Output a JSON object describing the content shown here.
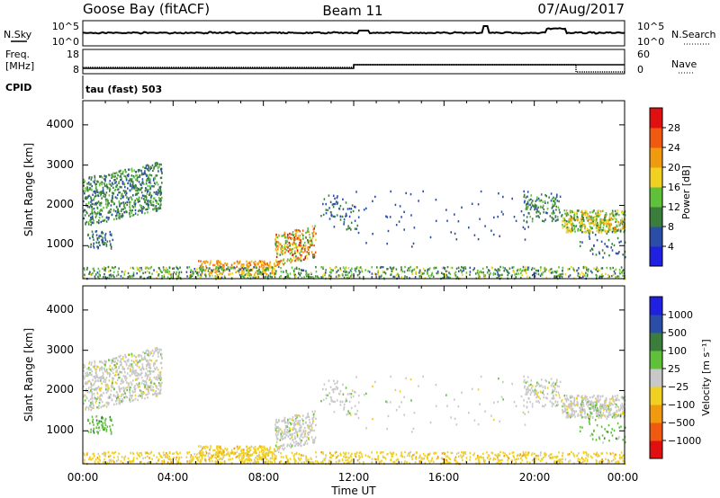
{
  "header": {
    "station": "Goose Bay (fitACF)",
    "beam": "Beam 11",
    "date": "07/Aug/2017"
  },
  "noise_panel": {
    "left_label": "N.Sky",
    "right_label": "N.Search",
    "left_ticks": [
      "10^5",
      "10^0"
    ],
    "right_ticks": [
      "10^5",
      "10^0"
    ]
  },
  "freq_panel": {
    "left_label_line1": "Freq.",
    "left_label_line2": "[MHz]",
    "right_label": "Nave",
    "left_ticks": [
      "18",
      "8"
    ],
    "right_ticks": [
      "60",
      "0"
    ]
  },
  "cpid": {
    "label": "CPID",
    "program": "tau (fast) 503"
  },
  "chart_data": [
    {
      "type": "heatmap",
      "title": "",
      "xlabel": "",
      "ylabel": "Slant Range [km]",
      "xlim": [
        0,
        24
      ],
      "ylim": [
        180,
        4600
      ],
      "yticks": [
        "1000",
        "2000",
        "3000",
        "4000"
      ],
      "colorbar": {
        "label": "Power [dB]",
        "ticks": [
          "4",
          "8",
          "12",
          "16",
          "20",
          "24",
          "28"
        ],
        "colors": [
          "#1f20e0",
          "#2a4ea8",
          "#3b7e3c",
          "#5fc03a",
          "#f0d020",
          "#f09a10",
          "#f05a10",
          "#e01010"
        ]
      }
    },
    {
      "type": "heatmap",
      "title": "",
      "xlabel": "Time UT",
      "ylabel": "Slant Range [km]",
      "xlim": [
        0,
        24
      ],
      "ylim": [
        180,
        4600
      ],
      "xticks": [
        "00:00",
        "04:00",
        "08:00",
        "12:00",
        "16:00",
        "20:00",
        "00:00"
      ],
      "yticks": [
        "1000",
        "2000",
        "3000",
        "4000"
      ],
      "colorbar": {
        "label": "Velocity [m s⁻¹]",
        "ticks": [
          "1000",
          "500",
          "100",
          "25",
          "−25",
          "−100",
          "−500",
          "−1000"
        ],
        "colors": [
          "#1f20e0",
          "#2a4ea8",
          "#3b7e3c",
          "#5fc03a",
          "#c8c8c8",
          "#f0d020",
          "#f09a10",
          "#f05a10",
          "#e01010"
        ]
      }
    }
  ]
}
